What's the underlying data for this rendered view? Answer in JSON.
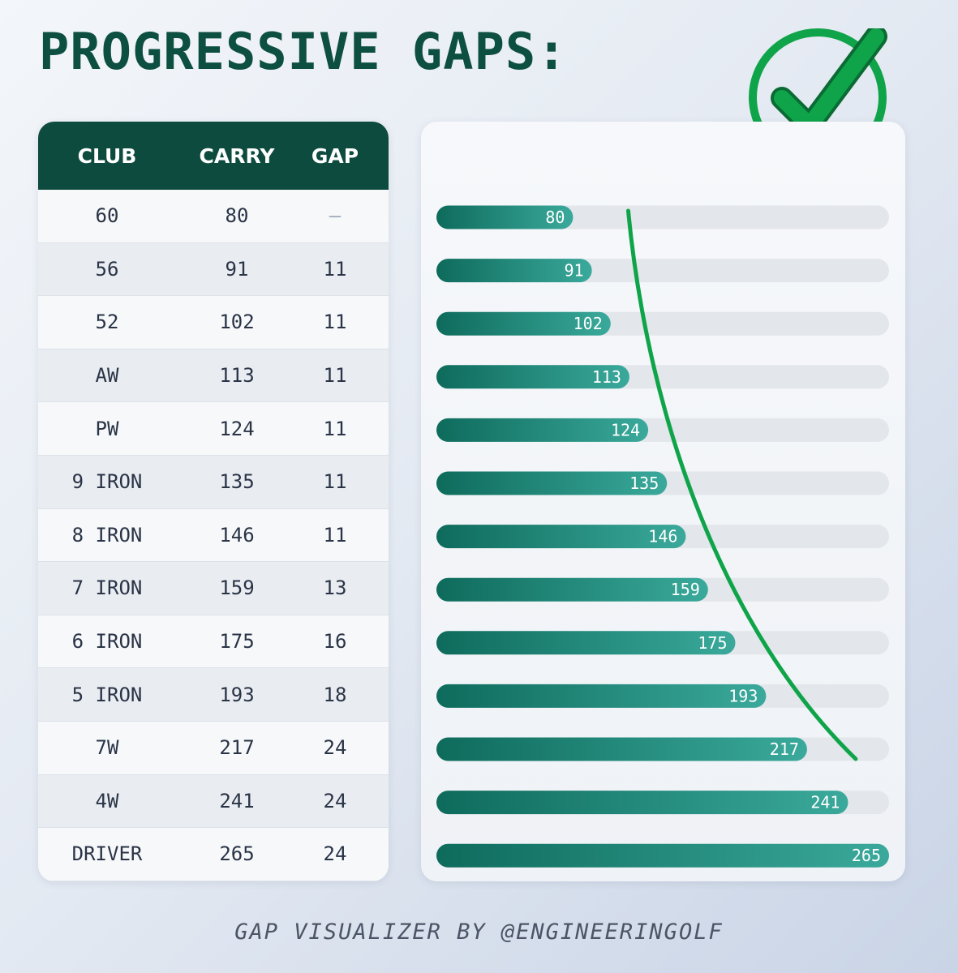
{
  "title": "PROGRESSIVE GAPS:",
  "footer": "GAP VISUALIZER BY @ENGINEERINGOLF",
  "icons": {
    "check": "check-circle-icon"
  },
  "colors": {
    "title": "#0d4f40",
    "header_bg": "#0d4b3e",
    "bar_start": "#0e6b5c",
    "bar_end": "#3aa99b",
    "track": "#e3e6ea",
    "check_green": "#0fa44a"
  },
  "table": {
    "headers": {
      "club": "CLUB",
      "carry": "CARRY",
      "gap": "GAP"
    },
    "rows": [
      {
        "club": "60",
        "carry": "80",
        "gap": "—"
      },
      {
        "club": "56",
        "carry": "91",
        "gap": "11"
      },
      {
        "club": "52",
        "carry": "102",
        "gap": "11"
      },
      {
        "club": "AW",
        "carry": "113",
        "gap": "11"
      },
      {
        "club": "PW",
        "carry": "124",
        "gap": "11"
      },
      {
        "club": "9 IRON",
        "carry": "135",
        "gap": "11"
      },
      {
        "club": "8 IRON",
        "carry": "146",
        "gap": "11"
      },
      {
        "club": "7 IRON",
        "carry": "159",
        "gap": "13"
      },
      {
        "club": "6 IRON",
        "carry": "175",
        "gap": "16"
      },
      {
        "club": "5 IRON",
        "carry": "193",
        "gap": "18"
      },
      {
        "club": "7W",
        "carry": "217",
        "gap": "24"
      },
      {
        "club": "4W",
        "carry": "241",
        "gap": "24"
      },
      {
        "club": "DRIVER",
        "carry": "265",
        "gap": "24"
      }
    ]
  },
  "chart_data": {
    "type": "bar",
    "orientation": "horizontal",
    "categories": [
      "60",
      "56",
      "52",
      "AW",
      "PW",
      "9 IRON",
      "8 IRON",
      "7 IRON",
      "6 IRON",
      "5 IRON",
      "7W",
      "4W",
      "DRIVER"
    ],
    "values": [
      80,
      91,
      102,
      113,
      124,
      135,
      146,
      159,
      175,
      193,
      217,
      241,
      265
    ],
    "xlim": [
      0,
      265
    ],
    "data_labels": true,
    "grid": false,
    "annotation": "trend curve over bar ends"
  }
}
